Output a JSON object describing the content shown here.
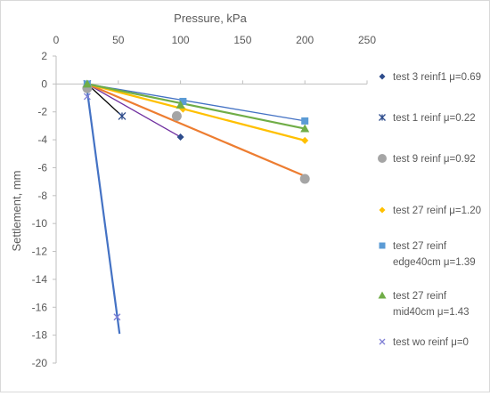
{
  "chart_data": {
    "type": "scatter",
    "title": "",
    "xlabel": "Pressure, kPa",
    "ylabel": "Settlement, mm",
    "xlim": [
      0,
      250
    ],
    "ylim": [
      -20,
      2
    ],
    "x_ticks": [
      0,
      50,
      100,
      150,
      200,
      250
    ],
    "y_ticks": [
      2,
      0,
      -2,
      -4,
      -6,
      -8,
      -10,
      -12,
      -14,
      -16,
      -18,
      -20
    ],
    "x_tick_labels": [
      "0",
      "50",
      "100",
      "150",
      "200",
      "250"
    ],
    "y_tick_labels": [
      "2",
      "0",
      "-2",
      "-4",
      "-6",
      "-8",
      "-10",
      "-12",
      "-14",
      "-16",
      "-18",
      "-20"
    ],
    "x_axis_position": "top",
    "grid": false,
    "legend_position": "right",
    "series": [
      {
        "name": "test 3 reinf1 μ=0.69",
        "color": "#2e4c8c",
        "marker": "diamond",
        "points": [
          [
            25,
            0
          ],
          [
            100,
            -3.8
          ]
        ],
        "trend_color": "#7030a0",
        "trend": [
          [
            25,
            0
          ],
          [
            100,
            -3.8
          ]
        ]
      },
      {
        "name": "test 1 reinf μ=0.22",
        "color": "#2e4c8c",
        "marker": "asterisk",
        "points": [
          [
            25,
            0
          ],
          [
            53,
            -2.3
          ]
        ],
        "trend_color": "#000000",
        "trend": [
          [
            25,
            0
          ],
          [
            53,
            -2.3
          ]
        ]
      },
      {
        "name": "test 9 reinf μ=0.92",
        "color": "#a5a5a5",
        "marker": "circle",
        "points": [
          [
            25,
            -0.3
          ],
          [
            97,
            -2.3
          ],
          [
            200,
            -6.8
          ]
        ],
        "trend_color": "#ed7d31",
        "trend": [
          [
            25,
            0
          ],
          [
            200,
            -6.6
          ]
        ]
      },
      {
        "name": "test 27 reinf μ=1.20",
        "color": "#ffc000",
        "marker": "diamond",
        "points": [
          [
            25,
            0
          ],
          [
            102,
            -1.8
          ],
          [
            200,
            -4.05
          ]
        ],
        "trend_color": "#ffc000",
        "trend": [
          [
            25,
            0
          ],
          [
            200,
            -4.05
          ]
        ]
      },
      {
        "name": "test 27 reinf edge40cm μ=1.39",
        "color": "#5b9bd5",
        "marker": "square",
        "points": [
          [
            25,
            0
          ],
          [
            102,
            -1.25
          ],
          [
            200,
            -2.65
          ]
        ],
        "trend_color": "#4472c4",
        "trend": [
          [
            25,
            0
          ],
          [
            200,
            -2.65
          ]
        ]
      },
      {
        "name": "test 27 reinf mid40cm μ=1.43",
        "color": "#70ad47",
        "marker": "triangle",
        "points": [
          [
            25,
            0
          ],
          [
            100,
            -1.5
          ],
          [
            200,
            -3.2
          ]
        ],
        "trend_color": "#70ad47",
        "trend": [
          [
            25,
            0
          ],
          [
            200,
            -3.2
          ]
        ]
      },
      {
        "name": "test wo reinf μ=0",
        "color": "#7f7fd5",
        "marker": "x",
        "points": [
          [
            25,
            -0.9
          ],
          [
            49,
            -16.7
          ]
        ],
        "trend_color": "#4472c4",
        "trend": [
          [
            25,
            -0.5
          ],
          [
            51,
            -17.9
          ]
        ]
      }
    ],
    "legend_lines": [
      [
        "test 3 reinf1 μ=0.69"
      ],
      [
        "test 1 reinf μ=0.22"
      ],
      [
        "test 9 reinf μ=0.92"
      ],
      [
        "test 27 reinf μ=1.20"
      ],
      [
        "test 27 reinf",
        "edge40cm μ=1.39"
      ],
      [
        "test 27 reinf",
        "mid40cm μ=1.43"
      ],
      [
        "test wo reinf μ=0"
      ]
    ]
  }
}
